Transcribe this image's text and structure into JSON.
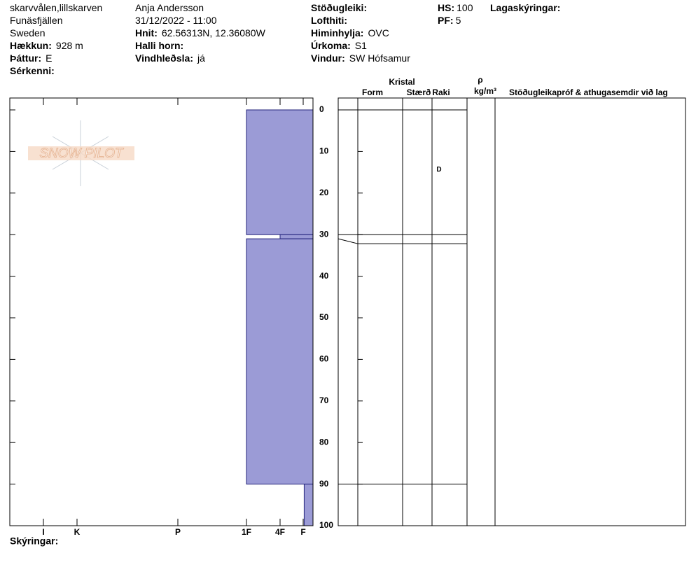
{
  "header": {
    "columns": [
      [
        {
          "text": "skarvvålen,lillskarven"
        },
        {
          "text": "Funäsfjällen"
        },
        {
          "text": "Sweden"
        },
        {
          "label": "Hækkun:",
          "value": "928 m"
        },
        {
          "label": "Þáttur:",
          "value": "E"
        },
        {
          "label": "Sérkenni:"
        }
      ],
      [
        {
          "text": "Anja Andersson"
        },
        {
          "text": "31/12/2022 - 11:00"
        },
        {
          "label": "Hnit:",
          "value": "62.56313N, 12.36080W"
        },
        {
          "label": "Halli horn:"
        },
        {
          "label": "Vindhleðsla:",
          "value": "já"
        }
      ],
      [
        {
          "label": "Stöðugleiki:"
        },
        {
          "label": "Lofthiti:"
        },
        {
          "label": "Himinhylja:",
          "value": "OVC"
        },
        {
          "label": "Úrkoma:",
          "value": "S1"
        },
        {
          "label": "Vindur:",
          "value": "SW Hófsamur"
        }
      ],
      [
        {
          "label": "HS:",
          "value": 100
        },
        {
          "label": "PF:",
          "value": 5
        }
      ],
      [
        {
          "label": "Lagaskýringar:"
        }
      ]
    ]
  },
  "logo": "SNOW PILOT",
  "footer": "Skýringar:",
  "table": {
    "group_header": "Kristal",
    "columns": [
      "Form",
      "Stærð",
      "Raki"
    ],
    "density_header": [
      "ρ",
      "kg/m³"
    ],
    "comments_header": "Stöðugleikapróf & athugasemdir við lag"
  },
  "chart_data": {
    "type": "snow-profile",
    "ylim": [
      0,
      100
    ],
    "yticks": [
      0,
      10,
      20,
      30,
      40,
      50,
      60,
      70,
      80,
      90,
      100
    ],
    "xlim": [
      0,
      6
    ],
    "xticks": [
      {
        "value": 6,
        "label": "I"
      },
      {
        "value": 5,
        "label": "K"
      },
      {
        "value": 4,
        "label": "P"
      },
      {
        "value": 3,
        "label": "1F"
      },
      {
        "value": 2,
        "label": "4F"
      },
      {
        "value": 1,
        "label": "F"
      }
    ],
    "color": "#9b9bd6",
    "layers": [
      {
        "top": 0,
        "bottom": 30,
        "hardness": 3,
        "wetness": "D"
      },
      {
        "top": 30,
        "bottom": 31,
        "hardness": 2
      },
      {
        "top": 31,
        "bottom": 90,
        "hardness": 3
      },
      {
        "top": 90,
        "bottom": 100,
        "hardness": 0.9
      }
    ]
  }
}
